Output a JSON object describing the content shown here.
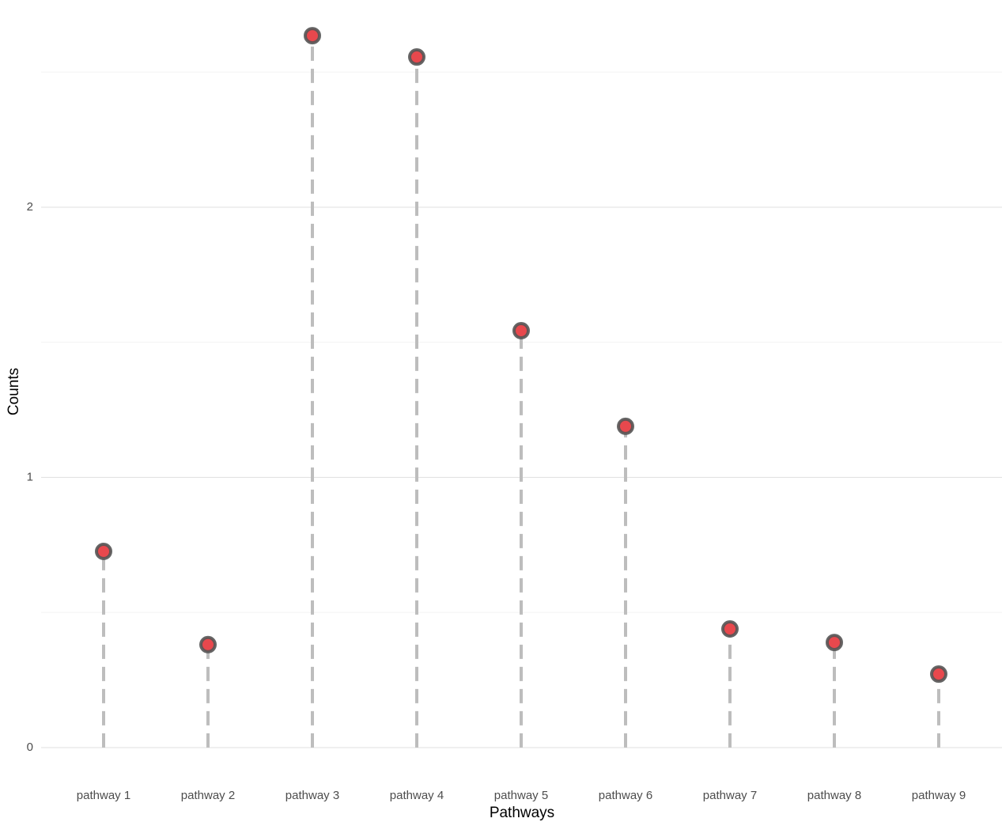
{
  "chart_data": {
    "type": "lollipop",
    "x_label": "Pathways",
    "y_label": "Counts",
    "categories": [
      "pathway 1",
      "pathway 2",
      "pathway 3",
      "pathway 4",
      "pathway 5",
      "pathway 6",
      "pathway 7",
      "pathway 8",
      "pathway 9"
    ],
    "values": [
      0.726,
      0.381,
      2.635,
      2.556,
      1.543,
      1.189,
      0.439,
      0.389,
      0.272
    ],
    "color": "#e8484d",
    "point_outline": "#555555",
    "segment_color": "#bdbdbd",
    "ylim": [
      -0.132,
      2.767
    ],
    "yticks": [
      0,
      1,
      2
    ],
    "yminorticks": [
      0.5,
      1.5,
      2.5
    ],
    "grid": true
  }
}
